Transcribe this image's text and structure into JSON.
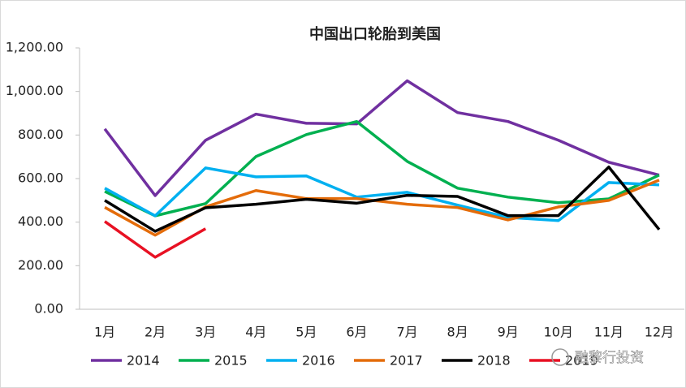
{
  "chart_data": {
    "type": "line",
    "title": "中国出口轮胎到美国",
    "categories": [
      "1月",
      "2月",
      "3月",
      "4月",
      "5月",
      "6月",
      "7月",
      "8月",
      "9月",
      "10月",
      "11月",
      "12月"
    ],
    "series": [
      {
        "name": "2014",
        "color": "#7030a0",
        "values": [
          828,
          522,
          776,
          896,
          854,
          851,
          1049,
          903,
          862,
          776,
          675,
          616
        ]
      },
      {
        "name": "2015",
        "color": "#00b050",
        "values": [
          541,
          429,
          485,
          701,
          802,
          862,
          679,
          556,
          515,
          489,
          507,
          616
        ]
      },
      {
        "name": "2016",
        "color": "#00b0f0",
        "values": [
          556,
          429,
          649,
          608,
          612,
          515,
          537,
          478,
          422,
          407,
          582,
          571
        ]
      },
      {
        "name": "2017",
        "color": "#e46c0a",
        "values": [
          468,
          340,
          470,
          545,
          508,
          508,
          482,
          467,
          410,
          470,
          500,
          593
        ]
      },
      {
        "name": "2018",
        "color": "#000000",
        "values": [
          500,
          358,
          466,
          482,
          505,
          487,
          523,
          518,
          430,
          430,
          653,
          366
        ]
      },
      {
        "name": "2019",
        "color": "#e81123",
        "values": [
          403,
          239,
          370,
          null,
          null,
          null,
          null,
          null,
          null,
          null,
          null,
          null
        ]
      }
    ],
    "ylim": [
      0,
      1200
    ],
    "yticks": [
      {
        "value": 0,
        "label": "0.00"
      },
      {
        "value": 200,
        "label": "200.00"
      },
      {
        "value": 400,
        "label": "400.00"
      },
      {
        "value": 600,
        "label": "600.00"
      },
      {
        "value": 800,
        "label": "800.00"
      },
      {
        "value": 1000,
        "label": "1,000.00"
      },
      {
        "value": 1200,
        "label": "1,200.00"
      }
    ],
    "grid": false,
    "legend": "bottom",
    "watermark": "融黎行投资"
  }
}
